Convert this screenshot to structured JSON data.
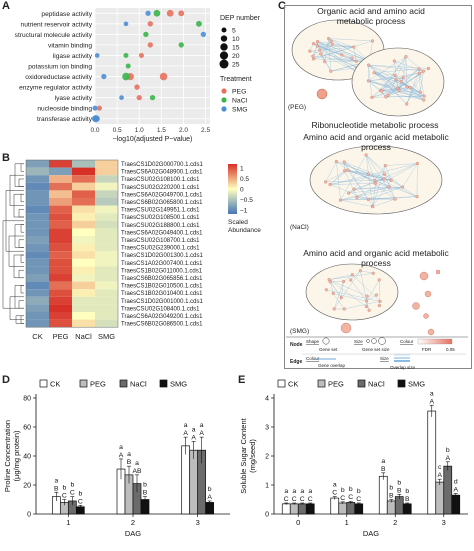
{
  "panel_a": {
    "label": "A",
    "xlabel": "−log10(adjusted P−value)",
    "terms": [
      "peptidase activity",
      "nutrient reservoir activity",
      "structural molecule activity",
      "vitamin binding",
      "ligase activity",
      "potassium ion binding",
      "oxidoreductase activity",
      "enzyme regulator activity",
      "lyase activity",
      "nucleoside binding",
      "transferase activity"
    ],
    "xticks": [
      "0.0",
      "0.5",
      "1.0",
      "1.5",
      "2.0",
      "2.5"
    ],
    "size_legend_title": "DEP number",
    "size_legend": [
      "5",
      "10",
      "15",
      "20",
      "25"
    ],
    "treat_legend_title": "Treatment",
    "colors": {
      "PEG": "#e8705f",
      "NaCl": "#3ab54a",
      "SMG": "#4a8fd6"
    },
    "chart_data": {
      "type": "scatter",
      "xlabel": "−log10(adjusted P−value)",
      "xlim": [
        0,
        2.6
      ],
      "series": [
        {
          "name": "PEG",
          "points": [
            {
              "term": "peptidase activity",
              "x": 1.7,
              "size": 12
            },
            {
              "term": "peptidase activity",
              "x": 1.95,
              "size": 8
            },
            {
              "term": "nutrient reservoir activity",
              "x": 1.25,
              "size": 6
            },
            {
              "term": "vitamin binding",
              "x": 1.25,
              "size": 6
            },
            {
              "term": "ligase activity",
              "x": 1.05,
              "size": 5
            },
            {
              "term": "oxidoreductase activity",
              "x": 1.55,
              "size": 16
            },
            {
              "term": "oxidoreductase activity",
              "x": 0.8,
              "size": 14
            },
            {
              "term": "enzyme regulator activity",
              "x": 0.95,
              "size": 6
            },
            {
              "term": "lyase activity",
              "x": 1.0,
              "size": 6
            },
            {
              "term": "nucleoside binding",
              "x": 0.1,
              "size": 5
            },
            {
              "term": "transferase activity",
              "x": 0.05,
              "size": 6
            }
          ]
        },
        {
          "name": "NaCl",
          "points": [
            {
              "term": "peptidase activity",
              "x": 1.4,
              "size": 12
            },
            {
              "term": "nutrient reservoir activity",
              "x": 2.35,
              "size": 8
            },
            {
              "term": "structural molecule activity",
              "x": 1.15,
              "size": 6
            },
            {
              "term": "vitamin binding",
              "x": 1.95,
              "size": 6
            },
            {
              "term": "ligase activity",
              "x": 0.7,
              "size": 5
            },
            {
              "term": "potassium ion binding",
              "x": 0.75,
              "size": 5
            },
            {
              "term": "oxidoreductase activity",
              "x": 0.7,
              "size": 16
            },
            {
              "term": "lyase activity",
              "x": 1.3,
              "size": 6
            },
            {
              "term": "transferase activity",
              "x": 0.0,
              "size": 6
            }
          ]
        },
        {
          "name": "SMG",
          "points": [
            {
              "term": "peptidase activity",
              "x": 1.2,
              "size": 6
            },
            {
              "term": "nutrient reservoir activity",
              "x": 0.7,
              "size": 4
            },
            {
              "term": "structural molecule activity",
              "x": 2.45,
              "size": 6
            },
            {
              "term": "ligase activity",
              "x": 0.05,
              "size": 4
            },
            {
              "term": "oxidoreductase activity",
              "x": 0.2,
              "size": 6
            },
            {
              "term": "lyase activity",
              "x": 0.6,
              "size": 4
            },
            {
              "term": "nucleoside binding",
              "x": 0.0,
              "size": 5
            },
            {
              "term": "transferase activity",
              "x": 0.0,
              "size": 8
            },
            {
              "term": "transferase activity",
              "x": 0.02,
              "size": 14
            }
          ]
        }
      ]
    }
  },
  "panel_b": {
    "label": "B",
    "columns": [
      "CK",
      "PEG",
      "NaCl",
      "SMG"
    ],
    "rows": [
      "TraesCS1D02G000700.1.cds1",
      "TraesCS6A02G048900.1.cds1",
      "TraesCSU02G108100.1.cds1",
      "TraesCSU02G220200.1.cds1",
      "TraesCS6A02G049700.1.cds1",
      "TraesCS6B02G065800.1.cds1",
      "TraesCSU02G149951.1.cds1",
      "TraesCSU02G108500.1.cds1",
      "TraesCSU02G188800.1.cds1",
      "TraesCS6A02G049400.1.cds1",
      "TraesCSU02G108700.1.cds1",
      "TraesCSU02G239000.1.cds1",
      "TraesCS1D02G001300.1.cds1",
      "TraesCS1A02G007400.1.cds1",
      "TraesCS1B02G011000.1.cds1",
      "TraesCS6B02G065856.1.cds1",
      "TraesCS1B02G010500.1.cds1",
      "TraesCS1B02G010400.1.cds1",
      "TraesCS1D02G001000.1.cds1",
      "TraesCSU02G108400.1.cds1",
      "TraesCS6A02G049200.1.cds1",
      "TraesCS6B02G086500.1.cds1"
    ],
    "scale_title_1": "Scaled",
    "scale_title_2": "Abundance",
    "scale_ticks": [
      "1",
      "0.5",
      "0",
      "−0.5",
      "−1"
    ],
    "chart_data": {
      "type": "heatmap",
      "x": [
        "CK",
        "PEG",
        "NaCl",
        "SMG"
      ],
      "values": [
        [
          -0.9,
          1.2,
          -0.6,
          0.3
        ],
        [
          -0.7,
          -0.9,
          1.3,
          0.3
        ],
        [
          -1.0,
          0.5,
          0.9,
          -0.4
        ],
        [
          -1.1,
          0.9,
          0.3,
          -0.1
        ],
        [
          -1.0,
          0.4,
          1.0,
          -0.4
        ],
        [
          -1.0,
          0.6,
          0.9,
          -0.5
        ],
        [
          -1.1,
          1.0,
          0.2,
          -0.1
        ],
        [
          -1.0,
          1.1,
          0.1,
          -0.2
        ],
        [
          -1.0,
          1.0,
          0.3,
          -0.3
        ],
        [
          -1.0,
          1.2,
          0.0,
          -0.2
        ],
        [
          -0.9,
          1.2,
          -0.1,
          -0.2
        ],
        [
          -1.0,
          1.1,
          0.1,
          -0.2
        ],
        [
          -1.1,
          1.0,
          0.2,
          -0.1
        ],
        [
          -1.0,
          1.1,
          0.0,
          -0.1
        ],
        [
          -1.0,
          1.1,
          0.1,
          -0.2
        ],
        [
          -0.9,
          1.2,
          -0.1,
          -0.2
        ],
        [
          -1.1,
          0.9,
          0.3,
          -0.1
        ],
        [
          -1.0,
          1.1,
          0.1,
          -0.2
        ],
        [
          -0.8,
          1.2,
          -0.2,
          -0.2
        ],
        [
          -0.9,
          1.3,
          -0.2,
          -0.2
        ],
        [
          -1.0,
          1.2,
          0.0,
          -0.2
        ],
        [
          -1.0,
          1.1,
          0.2,
          -0.3
        ]
      ]
    }
  },
  "panel_c": {
    "label": "C",
    "peg_title": "Organic acid and amino acid metabolic process",
    "peg_label": "(PEG)",
    "ribo_title": "Ribonucleotide metabolic process",
    "nacl_title": "Amino acid and organic acid metabolic process",
    "nacl_label": "(NaCl)",
    "smg_title": "Amino acid and organic acid metabolic process",
    "smg_label": "(SMG)",
    "legend": {
      "node": "Node",
      "edge": "Edge",
      "shape": "Shape",
      "gene_set": "Gene set",
      "size": "Size",
      "gene_set_size": "Gene set size",
      "colour": "Colour",
      "fdr": "FDR",
      "fdr_val": "0.05",
      "gene_overlap": "Gene overlap",
      "overlap_size": "Overlap size"
    }
  },
  "panel_d": {
    "label": "D",
    "ylabel_1": "Proline Concentration",
    "ylabel_2": "(μg/mg protein)",
    "xlabel": "DAG",
    "legend": [
      "CK",
      "PEG",
      "NaCl",
      "SMG"
    ],
    "yticks": [
      "0",
      "20",
      "40",
      "60",
      "80"
    ],
    "chart_data": {
      "type": "bar",
      "categories": [
        "1",
        "2",
        "3"
      ],
      "ylim": [
        0,
        80
      ],
      "series": [
        {
          "name": "CK",
          "values": [
            12,
            31,
            47
          ],
          "err": [
            3,
            7,
            6
          ],
          "upper": [
            "a",
            "a",
            "a"
          ],
          "lower": [
            "B",
            "A",
            "A"
          ]
        },
        {
          "name": "PEG",
          "values": [
            8,
            27,
            44
          ],
          "err": [
            2,
            6,
            6
          ],
          "upper": [
            "b",
            "a",
            "a"
          ],
          "lower": [
            "C",
            "B",
            "A"
          ]
        },
        {
          "name": "NaCl",
          "values": [
            9,
            21,
            44
          ],
          "err": [
            3,
            6,
            9
          ],
          "upper": [
            "b",
            "a",
            "a"
          ],
          "lower": [
            "C",
            "AB",
            "A"
          ]
        },
        {
          "name": "SMG",
          "values": [
            5,
            10,
            8
          ],
          "err": [
            1,
            2,
            1
          ],
          "upper": [
            "b",
            "b",
            "b"
          ],
          "lower": [
            "C",
            "B",
            "A"
          ]
        }
      ]
    }
  },
  "panel_e": {
    "label": "E",
    "ylabel_1": "Soluble Sugar Content",
    "ylabel_2": "(mg/seed)",
    "xlabel": "DAG",
    "legend": [
      "CK",
      "PEG",
      "NaCl",
      "SMG"
    ],
    "yticks": [
      "0",
      "1",
      "2",
      "3",
      "4"
    ],
    "chart_data": {
      "type": "bar",
      "categories": [
        "0",
        "1",
        "2",
        "3"
      ],
      "ylim": [
        0,
        4
      ],
      "series": [
        {
          "name": "CK",
          "values": [
            0.35,
            0.55,
            1.3,
            3.55
          ],
          "err": [
            0.03,
            0.05,
            0.12,
            0.2
          ],
          "upper": [
            "a",
            "a",
            "a",
            "a"
          ],
          "lower": [
            "C",
            "C",
            "B",
            "A"
          ]
        },
        {
          "name": "PEG",
          "values": [
            0.35,
            0.38,
            0.45,
            1.1
          ],
          "err": [
            0.03,
            0.04,
            0.05,
            0.1
          ],
          "upper": [
            "a",
            "b",
            "b",
            "c"
          ],
          "lower": [
            "C",
            "C",
            "B",
            "A"
          ]
        },
        {
          "name": "NaCl",
          "values": [
            0.35,
            0.4,
            0.6,
            1.65
          ],
          "err": [
            0.03,
            0.04,
            0.08,
            0.15
          ],
          "upper": [
            "a",
            "b",
            "b",
            "b"
          ],
          "lower": [
            "C",
            "C",
            "B",
            "A"
          ]
        },
        {
          "name": "SMG",
          "values": [
            0.35,
            0.35,
            0.35,
            0.65
          ],
          "err": [
            0.03,
            0.03,
            0.03,
            0.06
          ],
          "upper": [
            "a",
            "b",
            "b",
            "d"
          ],
          "lower": [
            "C",
            "C",
            "B",
            "A"
          ]
        }
      ]
    }
  }
}
